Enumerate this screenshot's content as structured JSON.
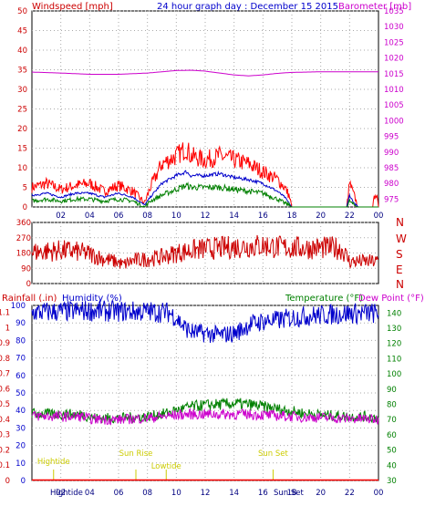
{
  "chart_data": [
    {
      "id": "wind",
      "type": "line",
      "title": "24 hour graph day : December 15 2015",
      "left_axis_label": "Windspeed [mph]",
      "right_axis_label": "Barometer [mb]",
      "x_tick_labels": [
        "02",
        "04",
        "06",
        "08",
        "10",
        "12",
        "14",
        "16",
        "18",
        "20",
        "22",
        "00"
      ],
      "left_ticks": [
        "0",
        "5",
        "10",
        "15",
        "20",
        "25",
        "30",
        "35",
        "40",
        "45",
        "50"
      ],
      "right_ticks": [
        "975",
        "980",
        "985",
        "990",
        "995",
        "1000",
        "1005",
        "1010",
        "1015",
        "1020",
        "1025",
        "1030",
        "1035"
      ],
      "ylim_left": [
        0,
        50
      ],
      "ylim_right": [
        972.5,
        1035
      ],
      "x_range_hours": [
        0,
        24
      ],
      "grid": true,
      "series": [
        {
          "key": "barometer",
          "axis": "right",
          "color": "#cc00cc",
          "x": [
            0,
            2,
            4,
            6,
            8,
            9,
            10,
            11,
            12,
            13,
            14,
            15,
            16,
            17,
            18,
            20,
            22,
            24
          ],
          "y": [
            1015.5,
            1015.2,
            1014.8,
            1014.8,
            1015.2,
            1015.6,
            1016,
            1016.1,
            1015.8,
            1015.2,
            1014.6,
            1014.3,
            1014.6,
            1015.1,
            1015.4,
            1015.6,
            1015.6,
            1015.6
          ]
        },
        {
          "key": "gust",
          "axis": "left",
          "color": "#ff0000",
          "x": [
            0,
            1,
            2,
            3,
            4,
            5,
            6,
            7,
            7.8,
            8.2,
            9,
            10,
            10.7,
            11,
            12,
            13,
            14,
            15,
            16,
            17,
            17.5,
            17.8,
            18,
            21.8,
            22,
            22.3,
            22.6,
            23.6,
            23.8,
            24
          ],
          "y": [
            5,
            6,
            4.5,
            5.5,
            6,
            4,
            5.5,
            4,
            1,
            5,
            11,
            13,
            15,
            13,
            12,
            13,
            12,
            11,
            9,
            7,
            5,
            3,
            0,
            0,
            6,
            3,
            0,
            0,
            4,
            0
          ]
        },
        {
          "key": "average_speed",
          "axis": "left",
          "color": "#0000cc",
          "x": [
            0,
            1,
            2,
            3,
            4,
            5,
            6,
            7,
            7.8,
            8.2,
            9,
            10,
            10.7,
            11,
            12,
            13,
            14,
            15,
            16,
            17,
            17.5,
            17.8,
            18,
            21.8,
            22,
            22.3,
            22.6,
            24
          ],
          "y": [
            3,
            3.5,
            2.5,
            3.5,
            3.5,
            2.5,
            3.5,
            2.5,
            0.5,
            2.5,
            6,
            8,
            9,
            8,
            8,
            8.5,
            7.5,
            7,
            6,
            4,
            2.5,
            1,
            0,
            0,
            3,
            1,
            0,
            0
          ]
        },
        {
          "key": "speed",
          "axis": "left",
          "color": "#008000",
          "x": [
            0,
            1,
            2,
            3,
            4,
            5,
            6,
            7,
            7.8,
            8.2,
            9,
            10,
            10.7,
            11,
            12,
            13,
            14,
            15,
            16,
            17,
            17.5,
            17.8,
            18,
            21.8,
            22,
            22.3,
            22.6,
            24
          ],
          "y": [
            1.5,
            2,
            1.5,
            2,
            2,
            1.5,
            2,
            1.5,
            0,
            1.5,
            3,
            4.5,
            5.5,
            5,
            5,
            5,
            4.5,
            4,
            3.5,
            2,
            1,
            0.5,
            0,
            0,
            1.5,
            0.5,
            0,
            0
          ]
        }
      ]
    },
    {
      "id": "direction",
      "type": "line",
      "x_tick_labels": [
        "02",
        "04",
        "06",
        "08",
        "10",
        "12",
        "14",
        "16",
        "18",
        "20",
        "22",
        "00"
      ],
      "left_ticks": [
        "0",
        "90",
        "180",
        "270",
        "360"
      ],
      "compass_labels": [
        "N",
        "W",
        "S",
        "E",
        "N"
      ],
      "ylim": [
        0,
        360
      ],
      "x_range_hours": [
        0,
        24
      ],
      "grid": true,
      "series": [
        {
          "key": "direction",
          "color": "#cc0000",
          "x": [
            0,
            1,
            2,
            3,
            4,
            5,
            6,
            6.3,
            7,
            8,
            9,
            10,
            11,
            12,
            13,
            14,
            15,
            16,
            17,
            18,
            19,
            20,
            21,
            21.5,
            22,
            24
          ],
          "y": [
            185,
            190,
            195,
            190,
            175,
            145,
            125,
            110,
            135,
            145,
            155,
            180,
            195,
            205,
            210,
            215,
            220,
            225,
            215,
            210,
            210,
            210,
            210,
            200,
            130,
            130
          ]
        }
      ]
    },
    {
      "id": "weather",
      "type": "line",
      "left_axis_label_1": "Rainfall (.in)",
      "left_axis_label_2": "Humidity (%)",
      "right_axis_label_1": "Temperature (°F)",
      "right_axis_label_2": "Dew Point (°F)",
      "x_tick_labels": [
        "02",
        "04",
        "06",
        "08",
        "10",
        "12",
        "14",
        "16",
        "18",
        "20",
        "22",
        "00"
      ],
      "x_tick_labels_shown": [
        "Hightide",
        "02",
        "04",
        "06",
        "08",
        "10",
        "12",
        "14",
        "16",
        "Sun Set",
        "18",
        "20",
        "22",
        "00"
      ],
      "rain_ticks": [
        "0",
        "0.1",
        "0.2",
        "0.3",
        "0.4",
        "0.5",
        "0.6",
        "0.7",
        "0.8",
        "0.9",
        "1",
        "1.1"
      ],
      "humidity_ticks": [
        "0",
        "10",
        "20",
        "30",
        "40",
        "50",
        "60",
        "70",
        "80",
        "90",
        "100"
      ],
      "temp_ticks": [
        "30",
        "40",
        "50",
        "60",
        "70",
        "80",
        "90",
        "100",
        "110",
        "120",
        "130",
        "140"
      ],
      "ylim_humidity": [
        0,
        100
      ],
      "ylim_temp": [
        30,
        145
      ],
      "x_range_hours": [
        0,
        24
      ],
      "grid": true,
      "events": [
        {
          "label": "Hightide",
          "hour": 1.5
        },
        {
          "label": "Sun Rise",
          "hour": 7.2
        },
        {
          "label": "Lowtide",
          "hour": 9.3
        },
        {
          "label": "Sun Set",
          "hour": 16.7
        }
      ],
      "series": [
        {
          "key": "humidity",
          "axis": "humidity",
          "color": "#0000cc",
          "x": [
            0,
            2,
            4,
            6,
            8,
            9.5,
            10,
            10.5,
            11,
            12,
            13,
            14,
            14.5,
            15,
            16,
            17,
            18,
            19,
            20,
            21,
            22,
            23,
            24
          ],
          "y": [
            96,
            96.5,
            97,
            96.5,
            96.5,
            96,
            93,
            88,
            85,
            84,
            83,
            84,
            86,
            89,
            91,
            91.5,
            93,
            94,
            94.5,
            95,
            95.5,
            95.5,
            95.5
          ]
        },
        {
          "key": "temperature",
          "axis": "temp",
          "color": "#008000",
          "x": [
            0,
            2,
            3.5,
            4,
            5,
            6,
            7,
            8,
            9,
            10,
            11,
            12,
            13,
            14,
            15,
            16,
            17,
            18,
            19,
            20,
            21,
            22,
            23,
            24
          ],
          "y": [
            74,
            73.5,
            73.5,
            71.5,
            71,
            71,
            71.5,
            72,
            73.5,
            76,
            78.5,
            79.5,
            80,
            80.5,
            80,
            78.5,
            77,
            75.5,
            74,
            73,
            72.5,
            72,
            72,
            71
          ]
        },
        {
          "key": "dew_point",
          "axis": "temp",
          "color": "#cc00cc",
          "x": [
            0,
            2,
            3.5,
            4,
            5,
            6,
            7,
            8,
            9,
            10,
            11,
            12,
            13,
            14,
            15,
            16,
            17,
            18,
            19,
            20,
            21,
            22,
            23,
            24
          ],
          "y": [
            72.5,
            72,
            72,
            70.5,
            70,
            70,
            70.5,
            71,
            72,
            73,
            73.5,
            73.5,
            73.5,
            73.5,
            73.5,
            73,
            72.5,
            72,
            71.5,
            71.5,
            71,
            70.5,
            70.5,
            70
          ]
        },
        {
          "key": "rainfall",
          "axis": "rain",
          "color": "#ff0000",
          "x": [
            0,
            24
          ],
          "y": [
            0,
            0
          ]
        }
      ]
    }
  ]
}
